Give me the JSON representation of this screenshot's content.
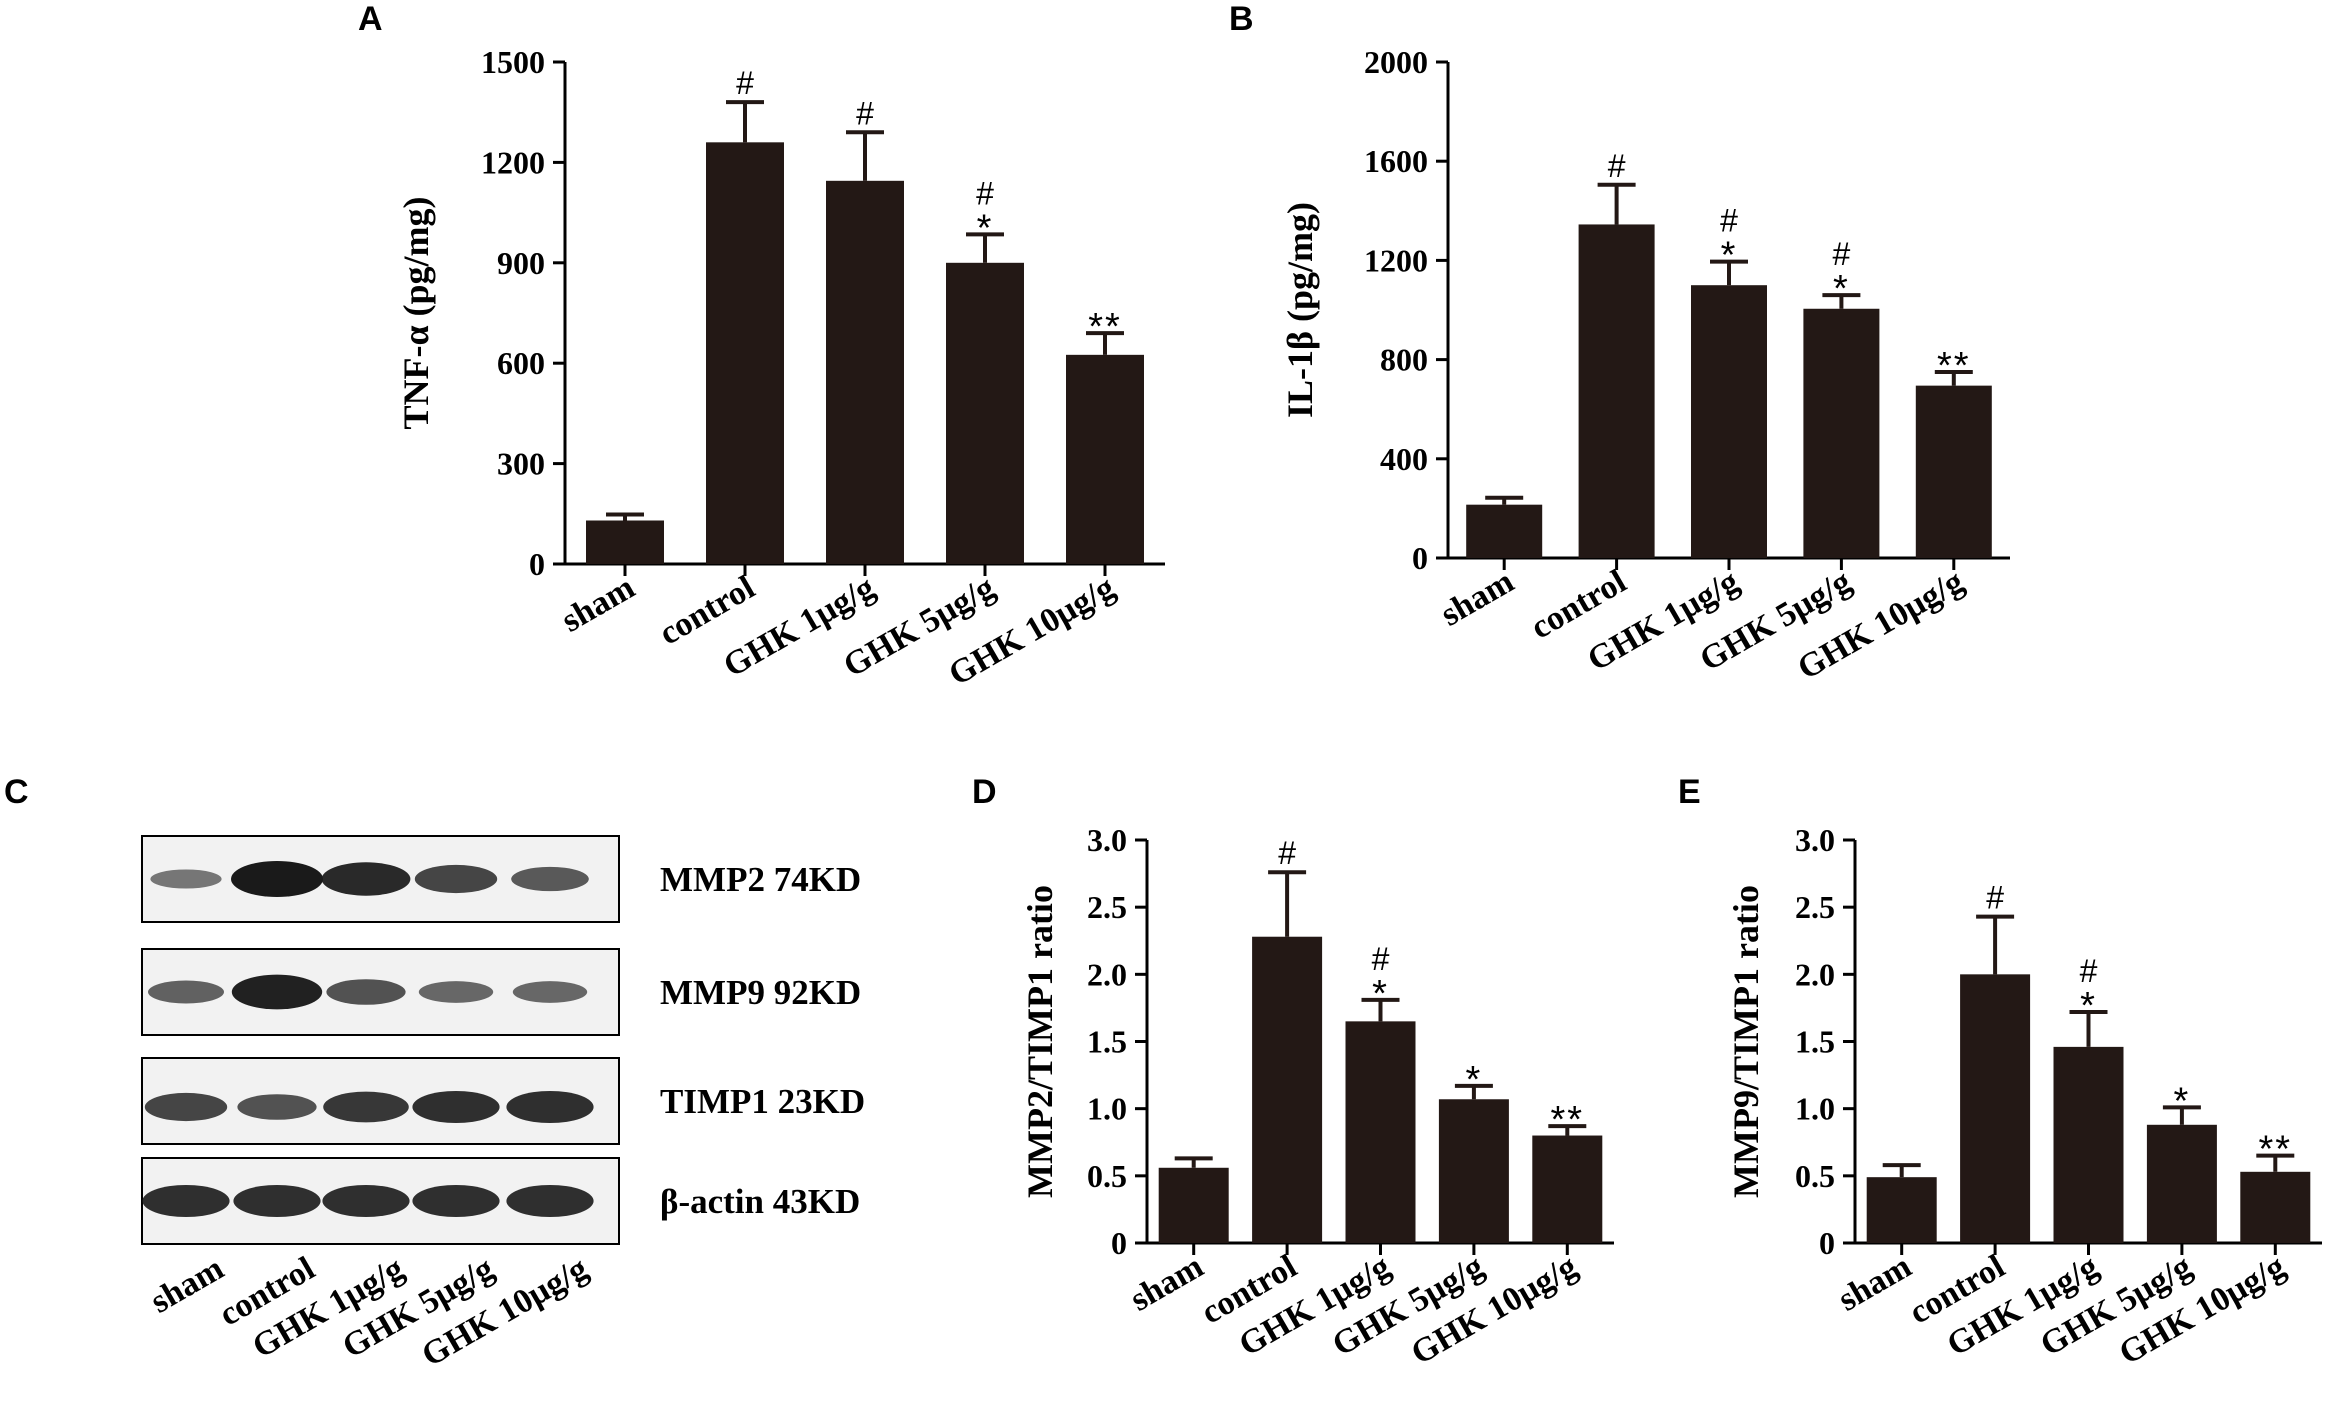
{
  "panels": {
    "A": "A",
    "B": "B",
    "C": "C",
    "D": "D",
    "E": "E"
  },
  "colors": {
    "bar": "#231815",
    "axis": "#000000",
    "blot_background": "#f2f2f2",
    "band": "#1a1a1a"
  },
  "chart_data": [
    {
      "id": "A",
      "type": "bar",
      "ylabel": "TNF-α (pg/mg)",
      "ylim": [
        0,
        1500
      ],
      "yticks": [
        0,
        300,
        600,
        900,
        1200,
        1500
      ],
      "categories": [
        "sham",
        "control",
        "GHK 1μg/g",
        "GHK 5μg/g",
        "GHK 10μg/g"
      ],
      "values": [
        130,
        1260,
        1145,
        900,
        625
      ],
      "errors": [
        18,
        120,
        145,
        85,
        65
      ],
      "significance": [
        [],
        [
          "#"
        ],
        [
          "#"
        ],
        [
          "*",
          "#"
        ],
        [
          "**"
        ]
      ]
    },
    {
      "id": "B",
      "type": "bar",
      "ylabel": "IL-1β (pg/mg)",
      "ylim": [
        0,
        2000
      ],
      "yticks": [
        0,
        400,
        800,
        1200,
        1600,
        2000
      ],
      "categories": [
        "sham",
        "control",
        "GHK 1μg/g",
        "GHK 5μg/g",
        "GHK 10μg/g"
      ],
      "values": [
        215,
        1345,
        1100,
        1005,
        695
      ],
      "errors": [
        28,
        160,
        95,
        55,
        55
      ],
      "significance": [
        [],
        [
          "#"
        ],
        [
          "*",
          "#"
        ],
        [
          "*",
          "#"
        ],
        [
          "**"
        ]
      ]
    },
    {
      "id": "D",
      "type": "bar",
      "ylabel": "MMP2/TIMP1 ratio",
      "ylim": [
        0,
        3.0
      ],
      "yticks": [
        0,
        0.5,
        1.0,
        1.5,
        2.0,
        2.5,
        3.0
      ],
      "categories": [
        "sham",
        "control",
        "GHK 1μg/g",
        "GHK 5μg/g",
        "GHK 10μg/g"
      ],
      "values": [
        0.56,
        2.28,
        1.65,
        1.07,
        0.8
      ],
      "errors": [
        0.07,
        0.48,
        0.16,
        0.1,
        0.07
      ],
      "significance": [
        [],
        [
          "#"
        ],
        [
          "*",
          "#"
        ],
        [
          "*"
        ],
        [
          "**"
        ]
      ]
    },
    {
      "id": "E",
      "type": "bar",
      "ylabel": "MMP9/TIMP1 ratio",
      "ylim": [
        0,
        3.0
      ],
      "yticks": [
        0,
        0.5,
        1.0,
        1.5,
        2.0,
        2.5,
        3.0
      ],
      "categories": [
        "sham",
        "control",
        "GHK 1μg/g",
        "GHK 5μg/g",
        "GHK 10μg/g"
      ],
      "values": [
        0.49,
        2.0,
        1.46,
        0.88,
        0.53
      ],
      "errors": [
        0.09,
        0.43,
        0.26,
        0.13,
        0.12
      ],
      "significance": [
        [],
        [
          "#"
        ],
        [
          "*",
          "#"
        ],
        [
          "*"
        ],
        [
          "**"
        ]
      ]
    }
  ],
  "western_blot": {
    "lanes": [
      "sham",
      "control",
      "GHK 1μg/g",
      "GHK 5μg/g",
      "GHK 10μg/g"
    ],
    "rows": [
      {
        "label": "MMP2 74KD",
        "intensities": [
          0.35,
          1.0,
          0.9,
          0.7,
          0.55
        ]
      },
      {
        "label": "MMP9 92KD",
        "intensities": [
          0.5,
          0.95,
          0.6,
          0.45,
          0.45
        ]
      },
      {
        "label": "TIMP1 23KD",
        "intensities": [
          0.7,
          0.6,
          0.8,
          0.85,
          0.85
        ]
      },
      {
        "label": "β-actin 43KD",
        "intensities": [
          0.85,
          0.85,
          0.85,
          0.85,
          0.85
        ]
      }
    ]
  }
}
